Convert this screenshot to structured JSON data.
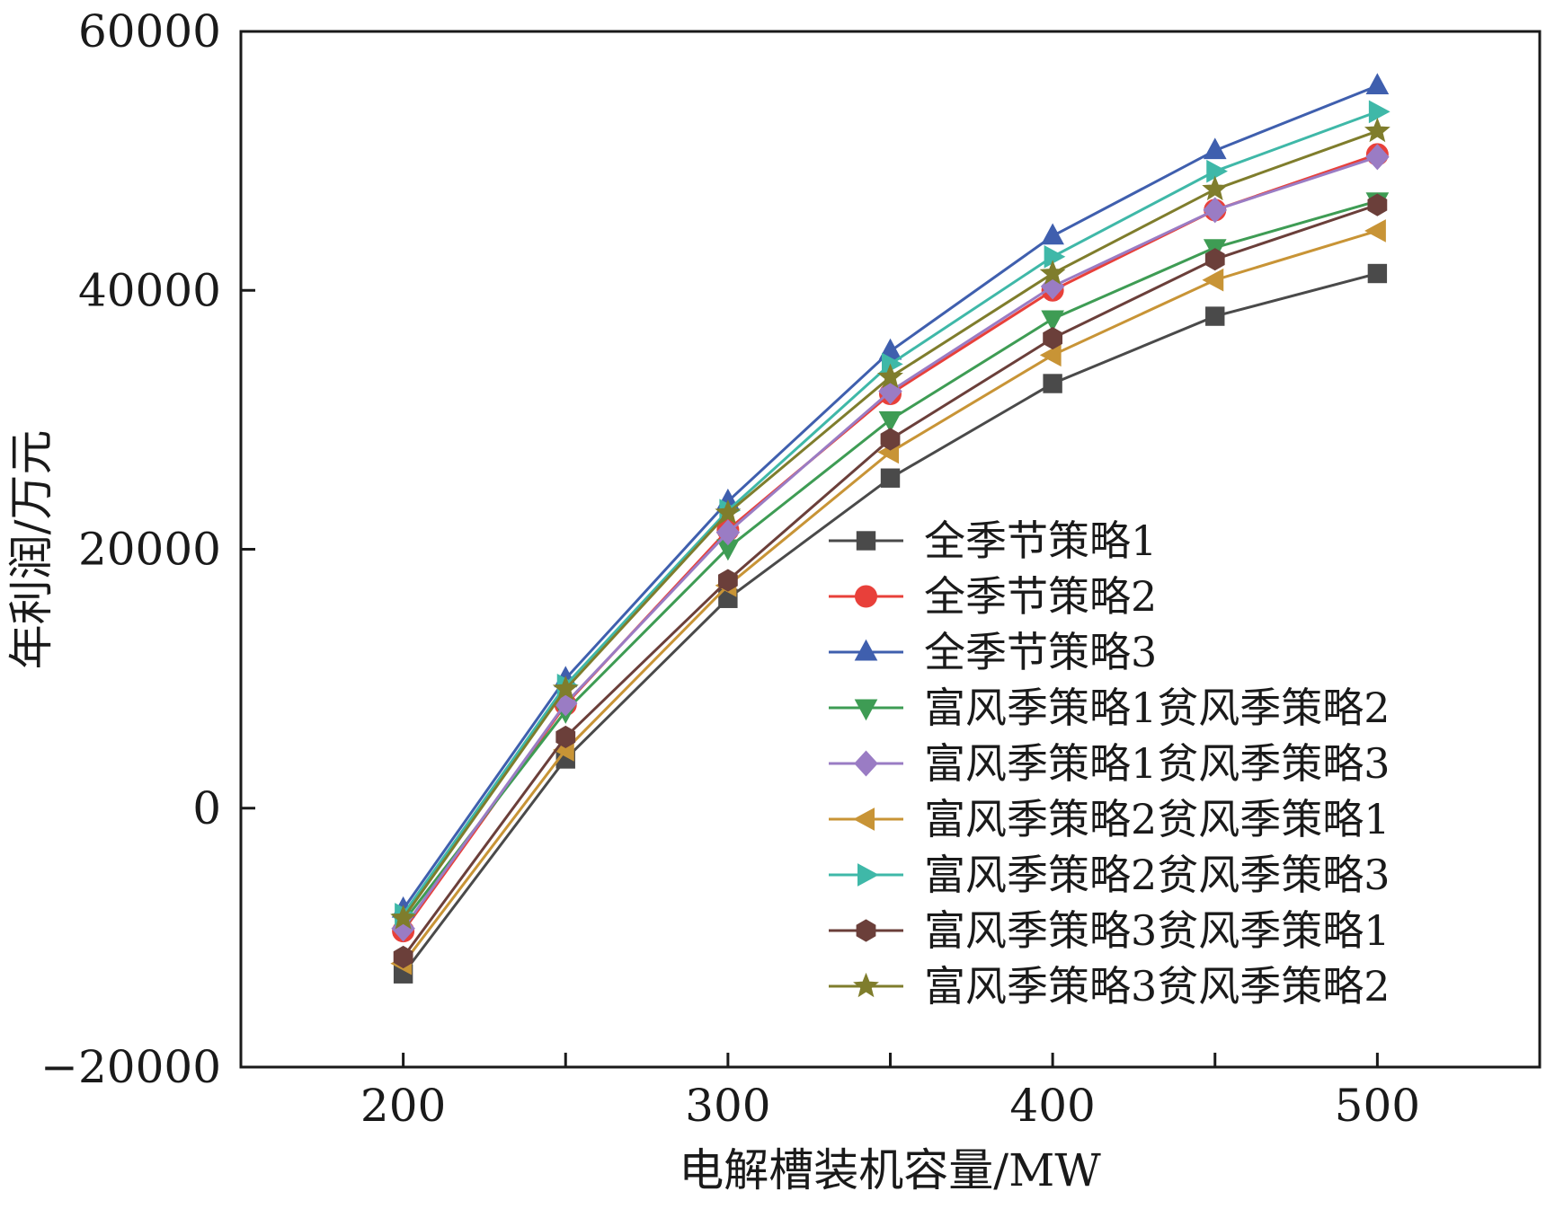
{
  "chart_data": {
    "type": "line",
    "title": "",
    "xlabel": "电解槽装机容量/MW",
    "ylabel": "年利润/万元",
    "x": [
      200,
      250,
      300,
      350,
      400,
      450,
      500
    ],
    "xlim": [
      150,
      550
    ],
    "ylim": [
      -20000,
      60000
    ],
    "xticks": [
      200,
      300,
      400,
      500
    ],
    "yticks": [
      -20000,
      0,
      20000,
      40000,
      60000
    ],
    "xtick_labels": [
      "200",
      "300",
      "400",
      "500"
    ],
    "ytick_labels": [
      "−20000",
      "0",
      "20000",
      "40000",
      "60000"
    ],
    "grid": false,
    "legend_position": "lower-right",
    "series": [
      {
        "name": "全季节策略1",
        "color": "#4a4a4a",
        "marker": "square",
        "values": [
          -12800,
          3800,
          16200,
          25500,
          32800,
          38000,
          41300
        ]
      },
      {
        "name": "全季节策略2",
        "color": "#e8403a",
        "marker": "circle",
        "values": [
          -9500,
          8000,
          21500,
          32000,
          40000,
          46200,
          50500
        ]
      },
      {
        "name": "全季节策略3",
        "color": "#3f5fae",
        "marker": "triangle-up",
        "values": [
          -7800,
          10000,
          23700,
          35300,
          44200,
          50800,
          55800
        ]
      },
      {
        "name": "富风季策略1贫风季策略2",
        "color": "#3e9c54",
        "marker": "triangle-down",
        "values": [
          -8800,
          7500,
          20100,
          30000,
          37800,
          43300,
          46900
        ]
      },
      {
        "name": "富风季策略1贫风季策略3",
        "color": "#9a7cc4",
        "marker": "diamond",
        "values": [
          -9300,
          8100,
          21300,
          32200,
          40300,
          46200,
          50300
        ]
      },
      {
        "name": "富风季策略2贫风季策略1",
        "color": "#c89436",
        "marker": "triangle-left",
        "values": [
          -12000,
          4500,
          17200,
          27500,
          35000,
          40800,
          44600
        ]
      },
      {
        "name": "富风季策略2贫风季策略3",
        "color": "#3fb8a8",
        "marker": "triangle-right",
        "values": [
          -8200,
          9500,
          23000,
          34300,
          42600,
          49200,
          53800
        ]
      },
      {
        "name": "富风季策略3贫风季策略1",
        "color": "#6b3f3a",
        "marker": "hexagon",
        "values": [
          -11500,
          5500,
          17600,
          28500,
          36300,
          42400,
          46600
        ]
      },
      {
        "name": "富风季策略3贫风季策略2",
        "color": "#7f7d2c",
        "marker": "star",
        "values": [
          -8500,
          9200,
          22800,
          33300,
          41300,
          47800,
          52300
        ]
      }
    ]
  }
}
